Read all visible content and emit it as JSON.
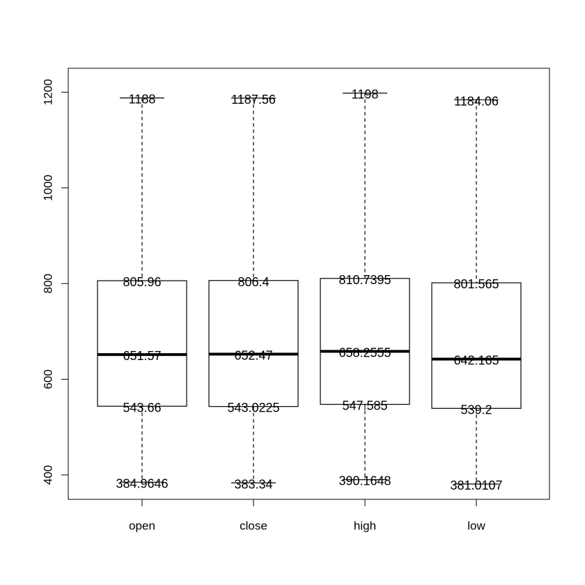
{
  "chart_data": {
    "type": "box",
    "title": "",
    "xlabel": "",
    "ylabel": "",
    "ylim": [
      349,
      1250
    ],
    "y_ticks": [
      400,
      600,
      800,
      1000,
      1200
    ],
    "y_tick_labels": [
      "400",
      "600",
      "800",
      "1000",
      "1200"
    ],
    "categories": [
      "open",
      "close",
      "high",
      "low"
    ],
    "boxes": [
      {
        "category": "open",
        "min": 384.9646,
        "q1": 543.66,
        "median": 651.57,
        "q3": 805.96,
        "max": 1188,
        "labels": {
          "min": "384.9646",
          "q1": "543.66",
          "median": "651.57",
          "q3": "805.96",
          "max": "1188"
        }
      },
      {
        "category": "close",
        "min": 383.34,
        "q1": 543.0225,
        "median": 652.47,
        "q3": 806.4,
        "max": 1187.56,
        "labels": {
          "min": "383.34",
          "q1": "543.0225",
          "median": "652.47",
          "q3": "806.4",
          "max": "1187.56"
        }
      },
      {
        "category": "high",
        "min": 390.1648,
        "q1": 547.585,
        "median": 658.2555,
        "q3": 810.7395,
        "max": 1198,
        "labels": {
          "min": "390.1648",
          "q1": "547.585",
          "median": "658.2555",
          "q3": "810.7395",
          "max": "1198"
        }
      },
      {
        "category": "low",
        "min": 381.0107,
        "q1": 539.2,
        "median": 642.165,
        "q3": 801.565,
        "max": 1184.06,
        "labels": {
          "min": "381.0107",
          "q1": "539.2",
          "median": "642.165",
          "q3": "801.565",
          "max": "1184.06"
        }
      }
    ],
    "grid": false,
    "colors": {
      "box_fill": "#ffffff",
      "stroke": "#000000",
      "whisker": "#000000"
    }
  }
}
